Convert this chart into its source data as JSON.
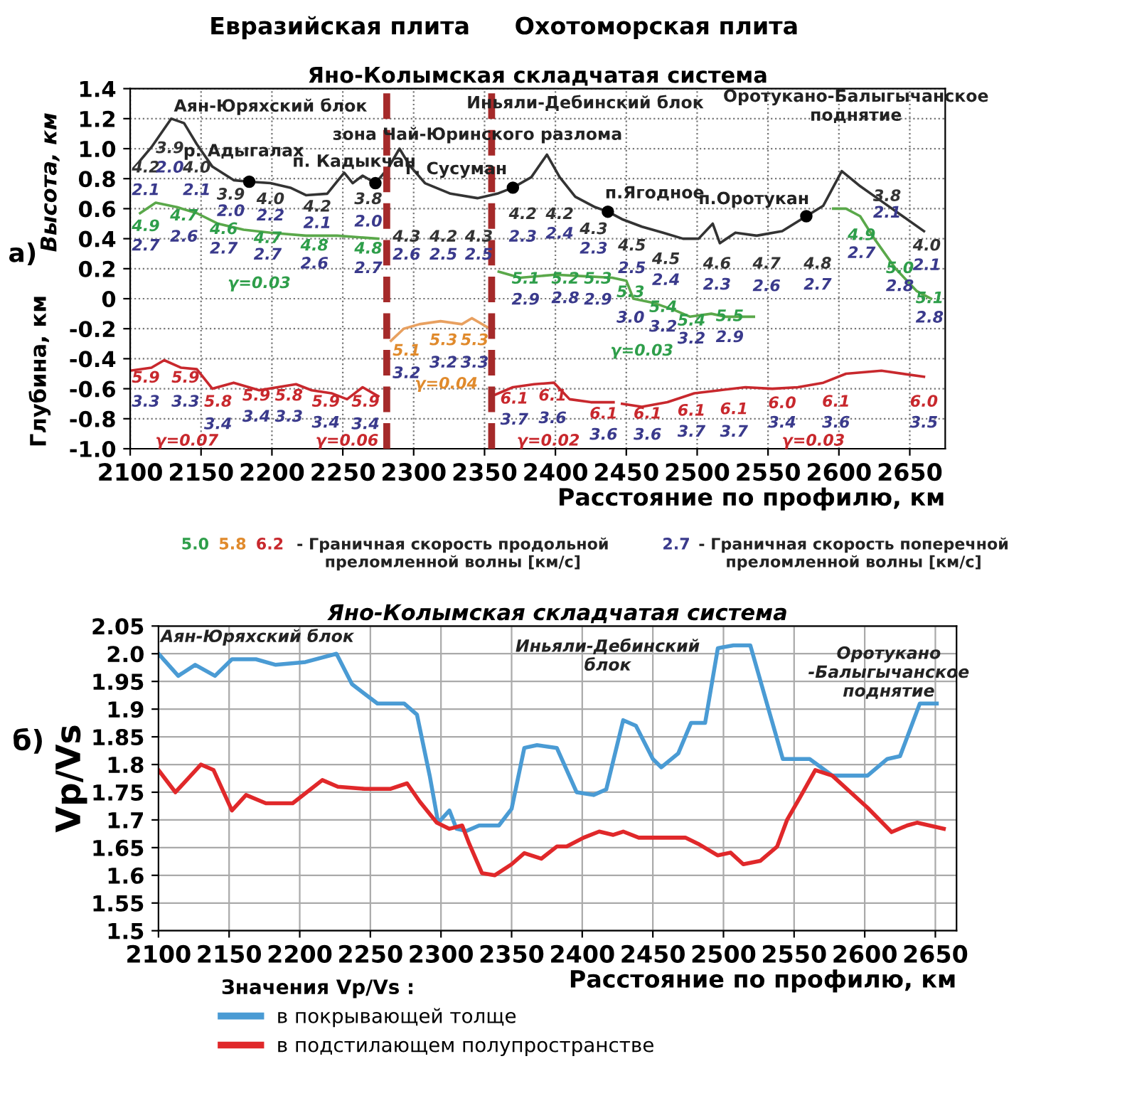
{
  "chart_data": [
    {
      "type": "line",
      "title": "Яно-Колымская складчатая система",
      "xlabel": "Расстояние по профилю, км",
      "ylabel": "Высота, км",
      "xlim": [
        2100,
        2675
      ],
      "ylim": [
        -1.0,
        1.4
      ],
      "xticks": [
        2100,
        2150,
        2200,
        2250,
        2300,
        2350,
        2400,
        2450,
        2500,
        2550,
        2600,
        2650
      ],
      "yticks": [
        {
          "value": -1.0,
          "label": "-1.0"
        },
        -0.8,
        -0.6,
        -0.4,
        -0.2,
        0,
        0.2,
        0.4,
        0.6,
        0.8,
        {
          "value": 1.0,
          "label": "1.0"
        },
        1.2,
        1.4
      ],
      "grid": true,
      "series": [
        {
          "color": "#333333",
          "x": [
            2107,
            2115,
            2129,
            2138,
            2147,
            2158,
            2173,
            2184,
            2199,
            2213,
            2224,
            2239,
            2251,
            2257,
            2264,
            2273,
            2282,
            2290,
            2297,
            2308,
            2326,
            2345,
            2359,
            2370,
            2383,
            2394,
            2403,
            2414,
            2428,
            2437,
            2447,
            2461,
            2476,
            2490,
            2501,
            2511,
            2516,
            2527,
            2542,
            2560,
            2577,
            2589,
            2602,
            2615,
            2630,
            2645,
            2660
          ],
          "values": [
            0.92,
            1.01,
            1.2,
            1.17,
            1.03,
            0.88,
            0.79,
            0.78,
            0.77,
            0.74,
            0.69,
            0.7,
            0.84,
            0.77,
            0.82,
            0.77,
            0.87,
            1.0,
            0.89,
            0.77,
            0.7,
            0.67,
            0.7,
            0.74,
            0.81,
            0.96,
            0.81,
            0.68,
            0.61,
            0.58,
            0.53,
            0.48,
            0.44,
            0.4,
            0.4,
            0.5,
            0.37,
            0.44,
            0.42,
            0.45,
            0.55,
            0.62,
            0.85,
            0.75,
            0.65,
            0.55,
            0.45
          ]
        },
        {
          "color": "#5aa84a",
          "x": [
            2107,
            2118,
            2133,
            2147,
            2162,
            2180,
            2199,
            2224,
            2246,
            2275,
            2320,
            2360,
            2375,
            2400,
            2420,
            2440,
            2450,
            2455,
            2470,
            2485,
            2495,
            2510,
            2520,
            2540,
            2570,
            2596,
            2605,
            2615,
            2625,
            2640,
            2655,
            2665
          ],
          "values": [
            0.57,
            0.64,
            0.61,
            0.57,
            0.5,
            0.46,
            0.44,
            0.42,
            0.42,
            0.4,
            null,
            0.18,
            0.14,
            0.16,
            0.15,
            0.14,
            0.12,
            0.0,
            -0.03,
            -0.08,
            -0.12,
            -0.1,
            -0.12,
            -0.12,
            null,
            0.6,
            0.6,
            0.55,
            0.4,
            0.2,
            0.05,
            0.0
          ]
        },
        {
          "color": "#e8a060",
          "x": [
            2284,
            2293,
            2304,
            2319,
            2334,
            2341,
            2352
          ],
          "values": [
            -0.28,
            -0.2,
            -0.17,
            -0.15,
            -0.17,
            -0.13,
            -0.19
          ]
        },
        {
          "color": "#c8282d",
          "x": [
            2100,
            2115,
            2124,
            2136,
            2147,
            2158,
            2173,
            2191,
            2217,
            2228,
            2242,
            2253,
            2264,
            2275,
            2315,
            2355,
            2370,
            2385,
            2399,
            2410,
            2425,
            2441,
            2444,
            2447,
            2461,
            2479,
            2498,
            2516,
            2534,
            2553,
            2571,
            2589,
            2605,
            2630,
            2660
          ],
          "values": [
            -0.48,
            -0.46,
            -0.41,
            -0.46,
            -0.47,
            -0.6,
            -0.56,
            -0.61,
            -0.57,
            -0.61,
            -0.63,
            -0.67,
            -0.59,
            -0.65,
            null,
            -0.65,
            -0.59,
            -0.57,
            -0.56,
            -0.67,
            -0.69,
            -0.69,
            null,
            -0.7,
            -0.72,
            -0.69,
            -0.63,
            -0.61,
            -0.59,
            -0.6,
            -0.59,
            -0.56,
            -0.5,
            -0.48,
            -0.52
          ]
        },
        {
          "type": "scatter",
          "marker": "circle",
          "color": "#000000",
          "x": [
            2184,
            2273,
            2370,
            2437,
            2577
          ],
          "values": [
            0.78,
            0.77,
            0.74,
            0.58,
            0.55
          ]
        }
      ],
      "ref_lines": [
        {
          "axis": "x",
          "value": 2281,
          "color": "#a52a2a",
          "line_style": "dashed"
        },
        {
          "axis": "x",
          "value": 2355,
          "color": "#a52a2a",
          "line_style": "dashed"
        }
      ],
      "annotations": [
        "Евразийская плита",
        "Охотоморская плита",
        "а)",
        "Глубина, км",
        "р. Адыгалах",
        "п. Кадыкчан",
        "г. Сусуман",
        "п.Ягодное",
        "п.Оротукан",
        "Аян-Юряхский блок",
        "Иньяли-Дебинский блок",
        "Оротукано-Балыгычанское\nподнятие",
        "зона Чай-Юринского разлома",
        "4.2",
        "2.1",
        "3.9",
        "2.0",
        "4.0",
        "2.1",
        "3.9",
        "2.0",
        "4.0",
        "2.2",
        "4.2",
        "2.1",
        "3.8",
        "2.0",
        "4.3",
        "2.6",
        "4.2",
        "2.5",
        "4.3",
        "2.5",
        "4.2",
        "2.3",
        "4.2",
        "2.4",
        "4.3",
        "2.3",
        "4.5",
        "2.5",
        "4.5",
        "2.4",
        "4.6",
        "2.3",
        "4.7",
        "2.6",
        "4.8",
        "2.7",
        "3.8",
        "2.1",
        "4.0",
        "2.1",
        "4.9",
        "2.7",
        "4.7",
        "2.6",
        "4.6",
        "2.7",
        "4.7",
        "2.7",
        "4.8",
        "2.6",
        "4.8",
        "2.7",
        "5.1",
        "2.9",
        "5.2",
        "2.8",
        "5.3",
        "2.9",
        "5.3",
        "3.0",
        "5.4",
        "3.2",
        "5.4",
        "3.2",
        "5.5",
        "2.9",
        "4.9",
        "2.7",
        "5.0",
        "2.8",
        "5.1",
        "2.8",
        "5.1",
        "3.2",
        "5.3",
        "3.2",
        "5.3",
        "3.3",
        "5.9",
        "3.3",
        "5.9",
        "3.3",
        "5.8",
        "3.4",
        "5.9",
        "3.4",
        "5.8",
        "3.3",
        "5.9",
        "3.4",
        "5.9",
        "3.4",
        "6.1",
        "3.7",
        "6.1",
        "3.6",
        "6.1",
        "3.6",
        "6.1",
        "3.6",
        "6.1",
        "3.7",
        "6.1",
        "3.7",
        "6.0",
        "3.4",
        "6.1",
        "3.6",
        "6.0",
        "3.5",
        "γ=0.03",
        "γ=0.04",
        "γ=0.03",
        "γ=0.07",
        "γ=0.06",
        "γ=0.02",
        "γ=0.03",
        "5.0",
        "5.8",
        "6.2",
        "- Граничная скорость продольной\nпреломленной волны [км/с]",
        "2.7",
        "- Граничная скорость поперечной\nпреломленной волны [км/с]"
      ]
    },
    {
      "type": "line",
      "title": "Яно-Колымская складчатая система",
      "xlabel": "Расстояние по профилю, км",
      "ylabel": "Vp/Vs",
      "xlim": [
        2100,
        2665
      ],
      "ylim": [
        1.5,
        2.05
      ],
      "xticks": [
        2100,
        2150,
        2200,
        2250,
        2300,
        2350,
        2400,
        2450,
        2500,
        2550,
        2600,
        2650
      ],
      "yticks": [
        1.5,
        1.55,
        1.6,
        1.65,
        1.7,
        1.75,
        1.8,
        1.85,
        1.9,
        1.95,
        {
          "value": 2.0,
          "label": "2.0"
        },
        2.05
      ],
      "grid": true,
      "legend": "bottom",
      "legend_title": "Значения Vp/Vs :",
      "series": [
        {
          "name": "в покрывающей толще",
          "color": "#4a9bd4",
          "x": [
            2100,
            2114,
            2126,
            2140,
            2152,
            2169,
            2183,
            2204,
            2226,
            2237,
            2255,
            2274,
            2283,
            2292,
            2298,
            2306,
            2311,
            2318,
            2327,
            2341,
            2350,
            2359,
            2368,
            2382,
            2396,
            2408,
            2417,
            2429,
            2438,
            2450,
            2456,
            2468,
            2477,
            2487,
            2496,
            2507,
            2519,
            2533,
            2542,
            2561,
            2577,
            2602,
            2616,
            2625,
            2639,
            2651
          ],
          "values": [
            2.0,
            1.96,
            1.98,
            1.96,
            1.99,
            1.99,
            1.98,
            1.985,
            2.0,
            1.945,
            1.91,
            1.91,
            1.89,
            1.78,
            1.695,
            1.717,
            1.684,
            1.68,
            1.69,
            1.69,
            1.72,
            1.83,
            1.835,
            1.83,
            1.75,
            1.745,
            1.755,
            1.88,
            1.87,
            1.81,
            1.795,
            1.82,
            1.875,
            1.875,
            2.01,
            2.015,
            2.015,
            1.89,
            1.81,
            1.81,
            1.78,
            1.78,
            1.81,
            1.815,
            1.91,
            1.91
          ]
        },
        {
          "name": "в подстилающем полупространстве",
          "color": "#e0282a",
          "x": [
            2100,
            2112,
            2130,
            2139,
            2152,
            2162,
            2176,
            2195,
            2216,
            2227,
            2246,
            2264,
            2276,
            2285,
            2297,
            2306,
            2315,
            2320,
            2329,
            2338,
            2350,
            2359,
            2371,
            2382,
            2389,
            2401,
            2412,
            2422,
            2429,
            2440,
            2456,
            2473,
            2482,
            2496,
            2505,
            2514,
            2526,
            2538,
            2545,
            2554,
            2565,
            2577,
            2602,
            2619,
            2630,
            2637,
            2656
          ],
          "values": [
            1.79,
            1.75,
            1.8,
            1.79,
            1.717,
            1.745,
            1.73,
            1.73,
            1.772,
            1.76,
            1.756,
            1.756,
            1.766,
            1.733,
            1.695,
            1.684,
            1.69,
            1.657,
            1.604,
            1.6,
            1.62,
            1.64,
            1.63,
            1.652,
            1.652,
            1.668,
            1.679,
            1.673,
            1.679,
            1.668,
            1.668,
            1.668,
            1.657,
            1.636,
            1.641,
            1.62,
            1.626,
            1.652,
            1.7,
            1.74,
            1.79,
            1.78,
            1.722,
            1.678,
            1.69,
            1.695,
            1.684
          ]
        }
      ],
      "annotations": [
        "б)",
        "Аян-Юряхский блок",
        "Иньяли-Дебинский\nблок",
        "Оротукано\n-Балыгычанское\nподнятие"
      ]
    }
  ]
}
